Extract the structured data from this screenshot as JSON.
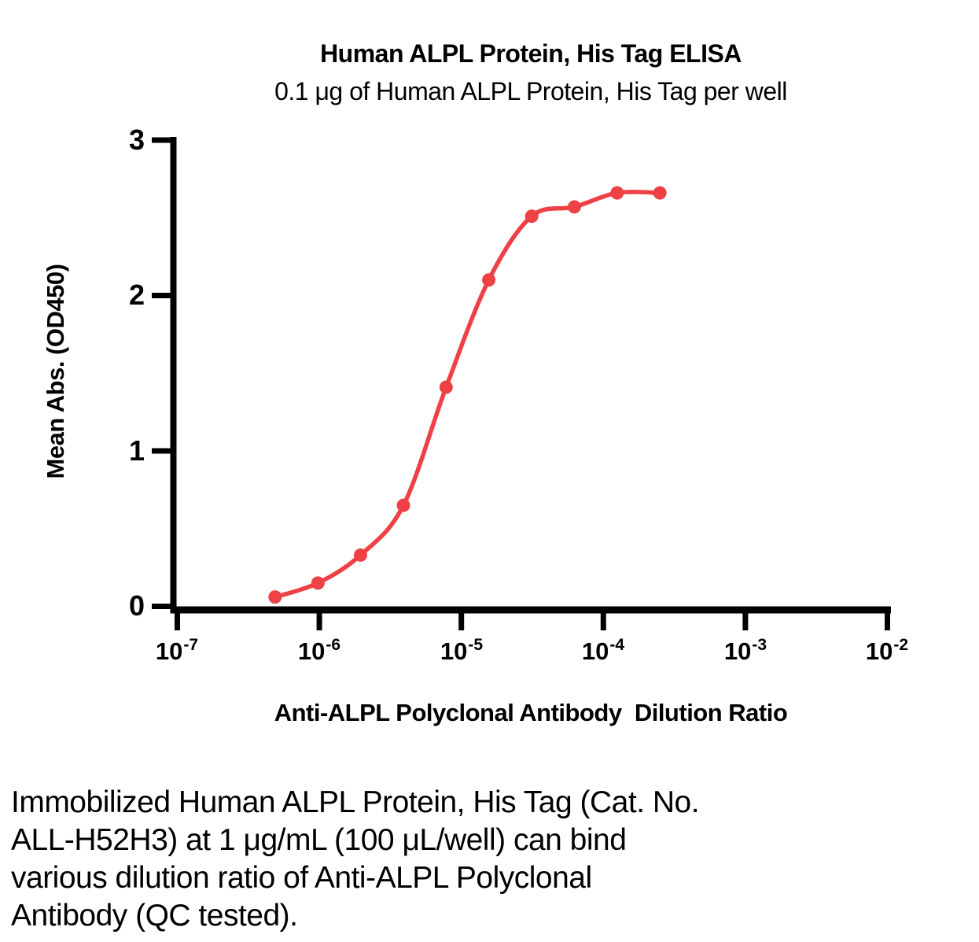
{
  "chart_data": {
    "type": "line",
    "title": "Human ALPL Protein, His Tag ELISA",
    "subtitle": "0.1 μg of Human ALPL Protein, His Tag per well",
    "xlabel": "Anti-ALPL Polyclonal Antibody  Dilution Ratio",
    "ylabel": "Mean Abs. (OD450)",
    "x_scale": "log10",
    "xlim": [
      1e-07,
      0.01
    ],
    "ylim": [
      0,
      3
    ],
    "grid": false,
    "legend": "none",
    "marker": "circle",
    "x_ticks": [
      {
        "base": "10",
        "exp": "-7",
        "value": 1e-07
      },
      {
        "base": "10",
        "exp": "-6",
        "value": 1e-06
      },
      {
        "base": "10",
        "exp": "-5",
        "value": 1e-05
      },
      {
        "base": "10",
        "exp": "-4",
        "value": 0.0001
      },
      {
        "base": "10",
        "exp": "-3",
        "value": 0.001
      },
      {
        "base": "10",
        "exp": "-2",
        "value": 0.01
      }
    ],
    "y_ticks": [
      {
        "label": "0",
        "value": 0
      },
      {
        "label": "1",
        "value": 1
      },
      {
        "label": "2",
        "value": 2
      },
      {
        "label": "3",
        "value": 3
      }
    ],
    "series": [
      {
        "name": "Anti-ALPL Polyclonal Antibody",
        "color": "#ee4145",
        "x": [
          4.88e-07,
          9.77e-07,
          1.95e-06,
          3.91e-06,
          7.81e-06,
          1.56e-05,
          3.13e-05,
          6.25e-05,
          0.000125,
          0.00025
        ],
        "y": [
          0.06,
          0.15,
          0.33,
          0.65,
          1.41,
          2.1,
          2.51,
          2.57,
          2.66,
          2.66
        ]
      }
    ]
  },
  "caption": {
    "lines": [
      "Immobilized Human ALPL Protein, His Tag (Cat. No.",
      "ALL-H52H3) at 1 μg/mL (100 μL/well) can bind",
      "various dilution ratio of Anti-ALPL Polyclonal",
      "Antibody (QC tested)."
    ]
  },
  "colors": {
    "curve": "#ee4145",
    "axis": "#000000",
    "text": "#000000",
    "background": "#ffffff"
  }
}
